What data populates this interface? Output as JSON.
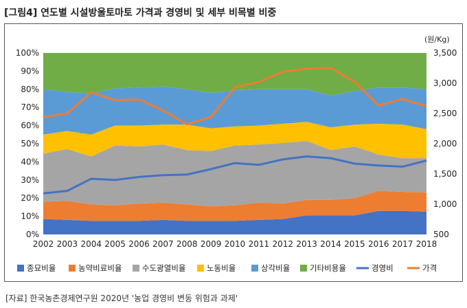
{
  "title": "[그림4] 연도별 시설방울토마토 가격과 경영비 및 세부 비목별 비중",
  "source": "[자료] 한국농촌경제연구원 2020년 '농업 경영비 변동 위험과 과제'",
  "chart_data": {
    "type": "area",
    "x": [
      "2002",
      "2003",
      "2004",
      "2005",
      "2006",
      "2007",
      "2008",
      "2009",
      "2010",
      "2011",
      "2012",
      "2013",
      "2014",
      "2015",
      "2016",
      "2017",
      "2018"
    ],
    "left_axis": {
      "ylim": [
        0,
        100
      ],
      "ticks": [
        "0%",
        "10%",
        "20%",
        "30%",
        "40%",
        "50%",
        "60%",
        "70%",
        "80%",
        "90%",
        "100%"
      ]
    },
    "right_axis": {
      "unit_label": "(원/Kg)",
      "ylim": [
        500,
        3500
      ],
      "ticks": [
        "500",
        "1,000",
        "1,500",
        "2,000",
        "2,500",
        "3,000",
        "3,500"
      ]
    },
    "stacked_series": [
      {
        "name": "종묘비율",
        "color": "#4472c4",
        "values": [
          8.5,
          8,
          7.5,
          7.5,
          7.5,
          8,
          7.5,
          7.5,
          7.5,
          8,
          8.5,
          10.5,
          10.5,
          10.5,
          13,
          13,
          12.5
        ]
      },
      {
        "name": "농약비료비율",
        "color": "#ed7d31",
        "values": [
          9.5,
          10.5,
          9,
          8.5,
          9.5,
          9.5,
          9,
          8,
          8.5,
          9.5,
          8.5,
          8.5,
          8.5,
          9.5,
          11,
          10.5,
          10.5
        ]
      },
      {
        "name": "수도광열비율",
        "color": "#a5a5a5",
        "values": [
          26.5,
          28.5,
          26.5,
          33,
          31.5,
          32,
          30,
          30.5,
          33,
          32,
          33.5,
          32.5,
          27.5,
          28.5,
          20,
          18.5,
          19
        ]
      },
      {
        "name": "노동비율",
        "color": "#ffc000",
        "values": [
          10.5,
          10,
          12,
          11,
          11.5,
          11,
          14,
          12.5,
          10.5,
          10.5,
          10.5,
          10.5,
          12.5,
          12,
          17,
          18.5,
          16
        ]
      },
      {
        "name": "상각비율",
        "color": "#5b9bd5",
        "values": [
          25,
          21.5,
          22.5,
          20.5,
          21,
          21,
          19.5,
          19.5,
          20,
          20,
          19,
          18,
          17.5,
          18.5,
          20,
          20.5,
          22
        ]
      },
      {
        "name": "기타비용율",
        "color": "#70ad47",
        "values": [
          20,
          21.5,
          22.5,
          19.5,
          19,
          18.5,
          20,
          22,
          20.5,
          20,
          20,
          20,
          23.5,
          21,
          19,
          19,
          20
        ]
      }
    ],
    "line_series": [
      {
        "name": "경영비",
        "color": "#4472c4",
        "values": [
          1180,
          1220,
          1420,
          1400,
          1450,
          1480,
          1490,
          1580,
          1680,
          1650,
          1740,
          1790,
          1760,
          1670,
          1640,
          1620,
          1720
        ]
      },
      {
        "name": "가격",
        "color": "#ed7d31",
        "values": [
          2440,
          2500,
          2850,
          2720,
          2730,
          2550,
          2320,
          2440,
          2930,
          3020,
          3190,
          3240,
          3250,
          3020,
          2630,
          2740,
          2620
        ]
      }
    ],
    "legend_position": "bottom",
    "grid": false
  }
}
